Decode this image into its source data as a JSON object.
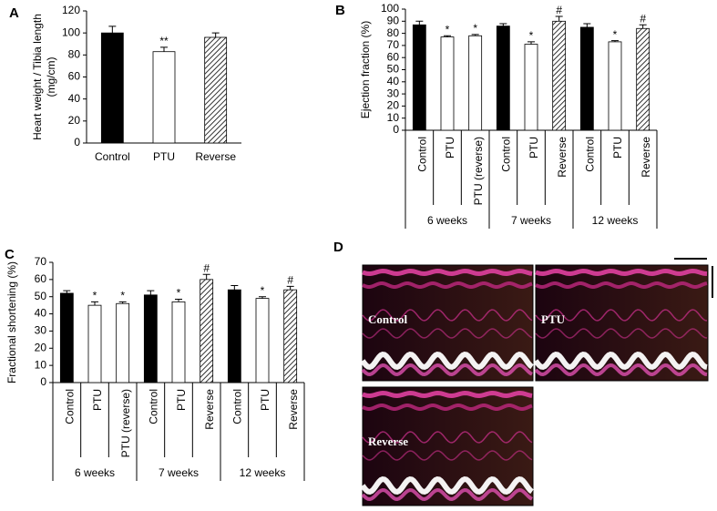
{
  "chart_data": [
    {
      "type": "bar",
      "panel_label": "A",
      "ylabel": [
        "Heart weight / Tibia length",
        "(mg/cm)"
      ],
      "categories": [
        "Control",
        "PTU",
        "Reverse"
      ],
      "values": [
        100,
        83,
        96
      ],
      "errors": [
        6,
        4,
        4
      ],
      "fills": [
        "black",
        "white",
        "hatch"
      ],
      "markers": [
        null,
        "**",
        null
      ],
      "ylim": [
        0,
        120
      ],
      "yticks": [
        0,
        20,
        40,
        60,
        80,
        100,
        120
      ],
      "rotate_labels": false
    },
    {
      "type": "bar",
      "panel_label": "B",
      "ylabel": [
        "Ejection fraction (%)"
      ],
      "categories": [
        "Control",
        "PTU",
        "PTU (reverse)",
        "Control",
        "PTU",
        "Reverse",
        "Control",
        "PTU",
        "Reverse"
      ],
      "values": [
        87,
        77,
        78,
        86,
        71,
        90,
        85,
        73,
        84
      ],
      "errors": [
        3,
        1,
        1,
        2,
        2,
        4,
        3,
        1,
        3
      ],
      "fills": [
        "black",
        "white",
        "white",
        "black",
        "white",
        "hatch",
        "black",
        "white",
        "hatch"
      ],
      "markers": [
        null,
        "*",
        "*",
        null,
        "*",
        "#",
        null,
        "*",
        "#"
      ],
      "groups": [
        "6 weeks",
        "7 weeks",
        "12 weeks"
      ],
      "ylim": [
        0,
        100
      ],
      "yticks": [
        0,
        10,
        20,
        30,
        40,
        50,
        60,
        70,
        80,
        90,
        100
      ],
      "rotate_labels": true
    },
    {
      "type": "bar",
      "panel_label": "C",
      "ylabel": [
        "Fractional shortening (%)"
      ],
      "categories": [
        "Control",
        "PTU",
        "PTU (reverse)",
        "Control",
        "PTU",
        "Reverse",
        "Control",
        "PTU",
        "Reverse"
      ],
      "values": [
        52,
        45,
        46,
        51,
        47,
        60,
        54,
        49,
        54
      ],
      "errors": [
        1.5,
        2,
        1,
        2.5,
        1.5,
        3,
        2.5,
        1,
        2
      ],
      "fills": [
        "black",
        "white",
        "white",
        "black",
        "white",
        "hatch",
        "black",
        "white",
        "hatch"
      ],
      "markers": [
        null,
        "*",
        "*",
        null,
        "*",
        "#",
        null,
        "*",
        "#"
      ],
      "groups": [
        "6 weeks",
        "7 weeks",
        "12 weeks"
      ],
      "ylim": [
        0,
        70
      ],
      "yticks": [
        0,
        10,
        20,
        30,
        40,
        50,
        60,
        70
      ],
      "rotate_labels": true
    }
  ],
  "echo_panel": {
    "panel_label": "D",
    "labels": [
      "Control",
      "PTU",
      "Reverse"
    ]
  }
}
